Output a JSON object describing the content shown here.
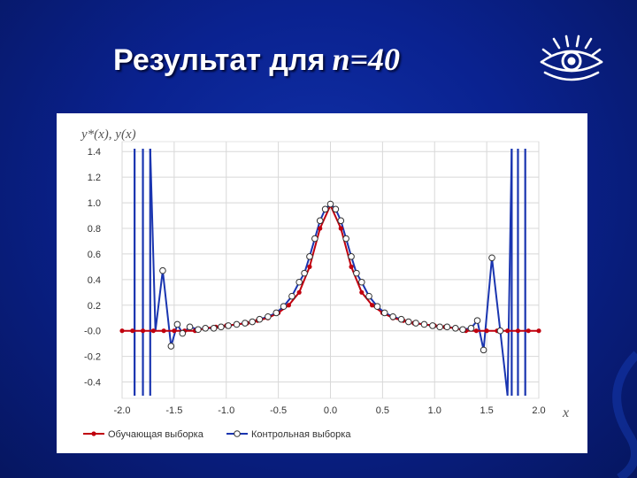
{
  "slide": {
    "title_text": "Результат для",
    "title_math": "n=40"
  },
  "colors": {
    "background": "#0a2290",
    "train_series": "#c0000e",
    "control_series": "#1a35b0",
    "grid": "#d8d8d8"
  },
  "chart_data": {
    "type": "line",
    "ylabel": "y*(x), y(x)",
    "xlabel": "x",
    "xlim": [
      -2.0,
      2.0
    ],
    "ylim": [
      -0.5,
      1.45
    ],
    "x_ticks": [
      "-2.0",
      "-1.5",
      "-1.0",
      "-0.5",
      "0.0",
      "0.5",
      "1.0",
      "1.5",
      "2.0"
    ],
    "x_tick_values": [
      -2.0,
      -1.5,
      -1.0,
      -0.5,
      0.0,
      0.5,
      1.0,
      1.5,
      2.0
    ],
    "y_ticks": [
      "1.4",
      "1.2",
      "1.0",
      "0.8",
      "0.6",
      "0.4",
      "0.2",
      "-0.0",
      "-0.2",
      "-0.4"
    ],
    "y_tick_values": [
      1.4,
      1.2,
      1.0,
      0.8,
      0.6,
      0.4,
      0.2,
      0.0,
      -0.2,
      -0.4
    ],
    "grid": true,
    "legend_position": "bottom",
    "series": [
      {
        "name": "Обучающая выборка",
        "marker": "filled-dot",
        "x": [
          -2.0,
          -1.9,
          -1.8,
          -1.7,
          -1.6,
          -1.5,
          -1.4,
          -1.3,
          -1.2,
          -1.1,
          -1.0,
          -0.9,
          -0.8,
          -0.7,
          -0.6,
          -0.5,
          -0.4,
          -0.3,
          -0.2,
          -0.1,
          0.0,
          0.1,
          0.2,
          0.3,
          0.4,
          0.5,
          0.6,
          0.7,
          0.8,
          0.9,
          1.0,
          1.1,
          1.2,
          1.3,
          1.4,
          1.5,
          1.6,
          1.7,
          1.8,
          1.9,
          2.0
        ],
        "y": [
          0.0,
          0.0,
          0.0,
          0.0,
          0.0,
          0.0,
          0.0,
          0.0,
          0.02,
          0.03,
          0.04,
          0.05,
          0.06,
          0.08,
          0.1,
          0.14,
          0.2,
          0.3,
          0.5,
          0.8,
          0.98,
          0.8,
          0.5,
          0.3,
          0.2,
          0.14,
          0.1,
          0.08,
          0.06,
          0.05,
          0.04,
          0.03,
          0.02,
          0.0,
          0.0,
          0.0,
          0.0,
          0.0,
          0.0,
          0.0,
          0.0
        ]
      },
      {
        "name": "Контрольная выборка",
        "marker": "open-circle",
        "x": [
          -1.61,
          -1.53,
          -1.47,
          -1.42,
          -1.35,
          -1.27,
          -1.2,
          -1.12,
          -1.05,
          -0.98,
          -0.9,
          -0.82,
          -0.75,
          -0.68,
          -0.6,
          -0.52,
          -0.45,
          -0.37,
          -0.3,
          -0.25,
          -0.2,
          -0.15,
          -0.1,
          -0.05,
          0.0,
          0.05,
          0.1,
          0.15,
          0.2,
          0.25,
          0.3,
          0.37,
          0.45,
          0.52,
          0.6,
          0.68,
          0.75,
          0.82,
          0.9,
          0.98,
          1.05,
          1.12,
          1.2,
          1.27,
          1.35,
          1.41,
          1.47,
          1.55,
          1.63
        ],
        "y": [
          0.47,
          -0.12,
          0.05,
          -0.02,
          0.03,
          0.01,
          0.02,
          0.02,
          0.03,
          0.04,
          0.05,
          0.06,
          0.07,
          0.09,
          0.11,
          0.14,
          0.19,
          0.27,
          0.38,
          0.45,
          0.58,
          0.72,
          0.86,
          0.95,
          0.99,
          0.95,
          0.86,
          0.72,
          0.58,
          0.45,
          0.38,
          0.27,
          0.19,
          0.14,
          0.11,
          0.09,
          0.07,
          0.06,
          0.05,
          0.04,
          0.03,
          0.03,
          0.02,
          0.01,
          0.02,
          0.08,
          -0.15,
          0.57,
          0.0
        ]
      }
    ]
  }
}
